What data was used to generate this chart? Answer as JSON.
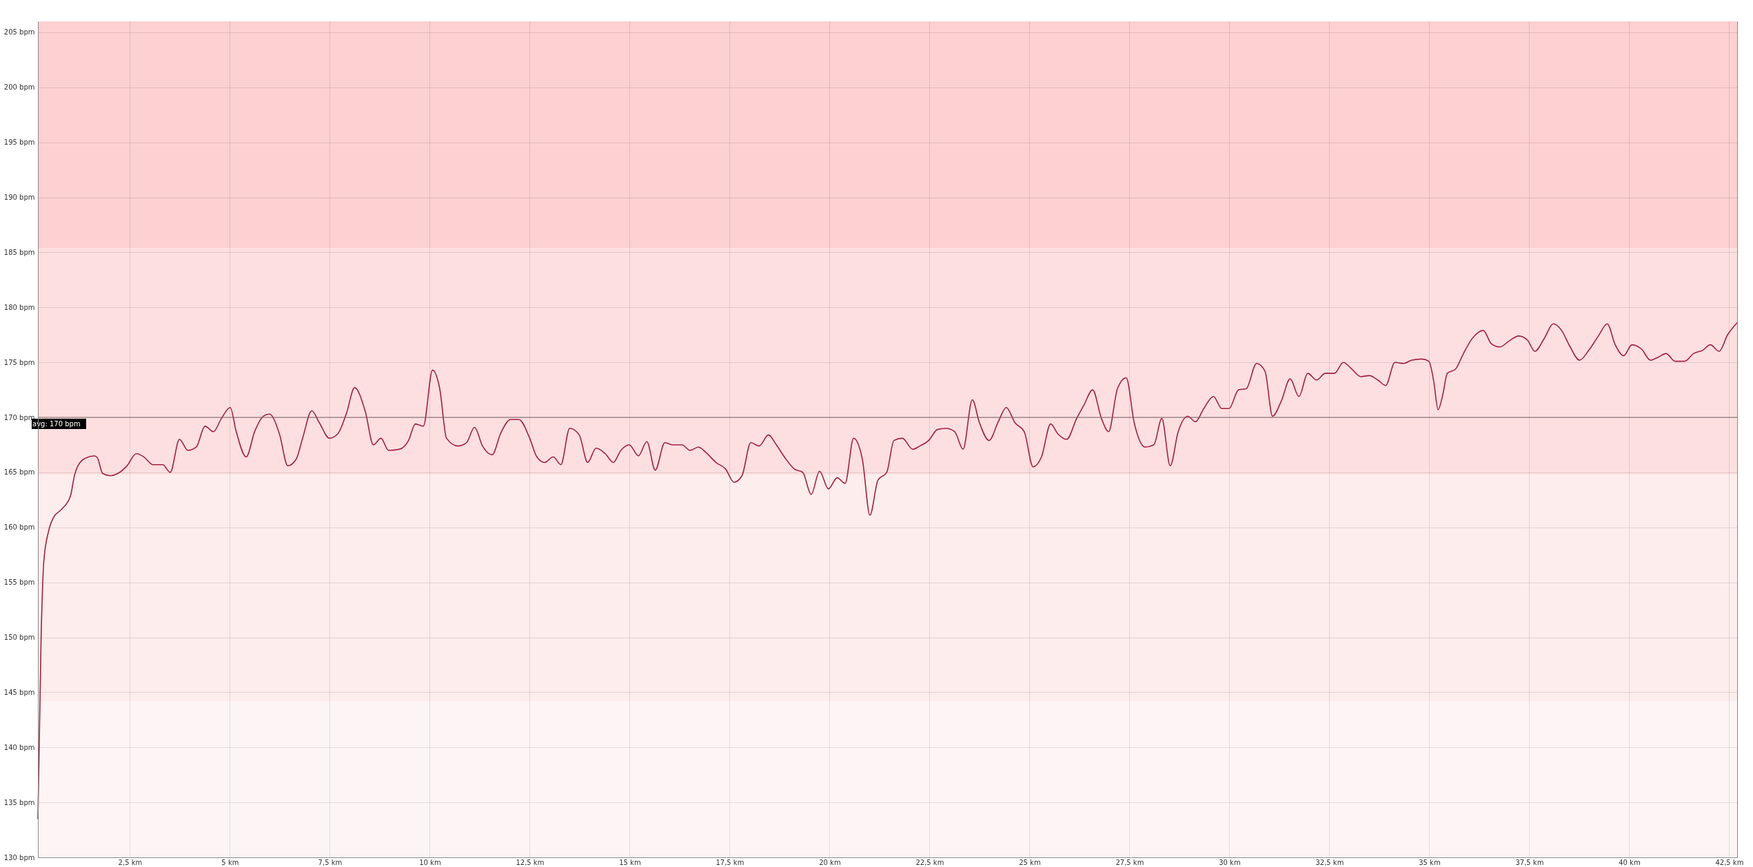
{
  "chart_data": {
    "type": "line",
    "x": [
      0.2,
      0.28,
      0.35,
      0.47,
      0.59,
      0.78,
      1.01,
      1.12,
      1.2,
      1.39,
      1.62,
      1.69,
      1.82,
      2.01,
      2.2,
      2.43,
      2.66,
      2.85,
      3.08,
      3.32,
      3.51,
      3.74,
      3.95,
      4.16,
      4.38,
      4.59,
      4.79,
      5.01,
      5.16,
      5.41,
      5.62,
      5.84,
      5.99,
      6.24,
      6.45,
      6.66,
      6.82,
      7.05,
      7.24,
      7.49,
      7.7,
      7.92,
      8.12,
      8.39,
      8.59,
      8.78,
      8.97,
      9.24,
      9.47,
      9.64,
      9.84,
      10.07,
      10.25,
      10.42,
      10.7,
      10.92,
      11.12,
      11.32,
      11.56,
      11.78,
      12.02,
      12.23,
      12.49,
      12.68,
      12.87,
      13.09,
      13.28,
      13.5,
      13.74,
      13.95,
      14.16,
      14.39,
      14.59,
      14.78,
      14.99,
      15.22,
      15.43,
      15.64,
      15.88,
      16.09,
      16.31,
      16.51,
      16.72,
      16.91,
      17.16,
      17.4,
      17.61,
      17.81,
      18.03,
      18.24,
      18.47,
      18.67,
      18.89,
      19.12,
      19.33,
      19.54,
      19.75,
      19.97,
      20.19,
      20.39,
      20.6,
      20.82,
      21.01,
      21.21,
      21.43,
      21.61,
      21.82,
      22.08,
      22.26,
      22.48,
      22.7,
      22.91,
      23.13,
      23.34,
      23.57,
      23.75,
      23.99,
      24.22,
      24.42,
      24.64,
      24.87,
      25.09,
      25.3,
      25.53,
      25.71,
      25.93,
      26.18,
      26.36,
      26.58,
      26.8,
      26.98,
      27.2,
      27.42,
      27.62,
      27.89,
      28.11,
      28.31,
      28.52,
      28.72,
      28.96,
      29.15,
      29.36,
      29.6,
      29.81,
      29.99,
      30.23,
      30.42,
      30.68,
      30.89,
      31.08,
      31.3,
      31.52,
      31.74,
      31.96,
      32.18,
      32.4,
      32.63,
      32.85,
      33.06,
      33.29,
      33.5,
      33.71,
      33.91,
      34.14,
      34.36,
      34.56,
      34.81,
      34.99,
      35.11,
      35.22,
      35.34,
      35.45,
      35.66,
      35.84,
      36.06,
      36.35,
      36.55,
      36.77,
      36.98,
      37.24,
      37.46,
      37.64,
      37.88,
      38.1,
      38.31,
      38.51,
      38.76,
      38.99,
      39.23,
      39.45,
      39.65,
      39.86,
      40.07,
      40.31,
      40.53,
      40.74,
      40.92,
      41.15,
      41.39,
      41.61,
      41.84,
      42.03,
      42.25,
      42.46,
      42.7
    ],
    "series": [
      {
        "color": "#a3213b",
        "values": [
          133.5,
          150.0,
          157.0,
          159.7,
          160.9,
          161.6,
          162.8,
          164.8,
          165.6,
          166.3,
          166.5,
          166.3,
          164.9,
          164.7,
          164.9,
          165.6,
          166.7,
          166.4,
          165.7,
          165.7,
          165.0,
          168.0,
          167.0,
          167.3,
          169.2,
          168.7,
          169.9,
          170.9,
          168.7,
          166.4,
          168.7,
          170.1,
          170.3,
          168.5,
          165.6,
          166.2,
          168.1,
          170.6,
          169.5,
          168.1,
          168.5,
          170.4,
          172.7,
          170.5,
          167.5,
          168.1,
          167.0,
          167.1,
          167.9,
          169.4,
          169.2,
          174.3,
          172.6,
          168.1,
          167.4,
          167.7,
          169.1,
          167.4,
          166.6,
          168.6,
          169.8,
          169.8,
          168.2,
          166.4,
          165.9,
          166.4,
          165.7,
          169.0,
          168.4,
          165.9,
          167.2,
          166.7,
          165.9,
          167.0,
          167.5,
          166.5,
          167.8,
          165.2,
          167.7,
          167.5,
          167.5,
          167.0,
          167.3,
          166.8,
          165.9,
          165.3,
          164.1,
          164.7,
          167.7,
          167.4,
          168.4,
          167.5,
          166.3,
          165.3,
          165.0,
          163.0,
          165.1,
          163.5,
          164.5,
          164.0,
          168.1,
          166.2,
          161.1,
          164.3,
          165.0,
          167.9,
          168.1,
          167.1,
          167.4,
          167.9,
          168.9,
          169.0,
          168.7,
          167.1,
          171.6,
          169.5,
          167.9,
          169.6,
          170.9,
          169.5,
          168.7,
          165.5,
          166.4,
          169.4,
          168.5,
          168.0,
          169.9,
          171.1,
          172.5,
          169.9,
          168.7,
          172.6,
          173.6,
          169.5,
          167.3,
          167.5,
          169.9,
          165.6,
          168.7,
          170.1,
          169.6,
          170.8,
          171.9,
          170.8,
          170.8,
          172.5,
          172.6,
          174.9,
          174.2,
          170.1,
          171.5,
          173.5,
          171.9,
          174.0,
          173.4,
          174.0,
          174.0,
          175.0,
          174.4,
          173.7,
          173.8,
          173.4,
          172.9,
          175.0,
          174.9,
          175.2,
          175.3,
          175.1,
          173.3,
          170.7,
          172.1,
          174.0,
          174.4,
          175.7,
          177.1,
          177.9,
          176.7,
          176.4,
          176.9,
          177.4,
          177.0,
          176.0,
          177.2,
          178.5,
          177.9,
          176.5,
          175.2,
          176.1,
          177.4,
          178.5,
          176.6,
          175.6,
          176.6,
          176.2,
          175.2,
          175.5,
          175.8,
          175.1,
          175.1,
          175.8,
          176.1,
          176.6,
          176.0,
          177.5,
          178.6
        ]
      }
    ],
    "xlim": [
      0.2,
      42.7
    ],
    "ylim": [
      130,
      206
    ],
    "xticks": [
      {
        "value": 2.5,
        "label": "2,5 km"
      },
      {
        "value": 5,
        "label": "5 km"
      },
      {
        "value": 7.5,
        "label": "7,5 km"
      },
      {
        "value": 10,
        "label": "10 km"
      },
      {
        "value": 12.5,
        "label": "12,5 km"
      },
      {
        "value": 15,
        "label": "15 km"
      },
      {
        "value": 17.5,
        "label": "17,5 km"
      },
      {
        "value": 20,
        "label": "20 km"
      },
      {
        "value": 22.5,
        "label": "22,5 km"
      },
      {
        "value": 25,
        "label": "25 km"
      },
      {
        "value": 27.5,
        "label": "27,5 km"
      },
      {
        "value": 30,
        "label": "30 km"
      },
      {
        "value": 32.5,
        "label": "32,5 km"
      },
      {
        "value": 35,
        "label": "35 km"
      },
      {
        "value": 37.5,
        "label": "37,5 km"
      },
      {
        "value": 40,
        "label": "40 km"
      },
      {
        "value": 42.5,
        "label": "42,5 km"
      }
    ],
    "yticks": [
      {
        "value": 130,
        "label": "130 bpm"
      },
      {
        "value": 135,
        "label": "135 bpm"
      },
      {
        "value": 140,
        "label": "140 bpm"
      },
      {
        "value": 145,
        "label": "145 bpm"
      },
      {
        "value": 150,
        "label": "150 bpm"
      },
      {
        "value": 155,
        "label": "155 bpm"
      },
      {
        "value": 160,
        "label": "160 bpm"
      },
      {
        "value": 165,
        "label": "165 bpm"
      },
      {
        "value": 170,
        "label": "170 bpm"
      },
      {
        "value": 175,
        "label": "175 bpm"
      },
      {
        "value": 180,
        "label": "180 bpm"
      },
      {
        "value": 185,
        "label": "185 bpm"
      },
      {
        "value": 190,
        "label": "190 bpm"
      },
      {
        "value": 195,
        "label": "195 bpm"
      },
      {
        "value": 200,
        "label": "200 bpm"
      },
      {
        "value": 205,
        "label": "205 bpm"
      }
    ],
    "grid": true,
    "ref_lines": [
      {
        "axis": "y",
        "value": 170,
        "label": "avg: 170 bpm",
        "color": "#806a6a"
      }
    ],
    "bands": [
      {
        "axis": "y",
        "from": 130,
        "to": 144.2,
        "color": "#fdf5f5"
      },
      {
        "axis": "y",
        "from": 144.2,
        "to": 164.8,
        "color": "#fdeded"
      },
      {
        "axis": "y",
        "from": 164.8,
        "to": 185.4,
        "color": "#fddfe0"
      },
      {
        "axis": "y",
        "from": 185.4,
        "to": 206,
        "color": "#fdd0d1"
      }
    ]
  }
}
